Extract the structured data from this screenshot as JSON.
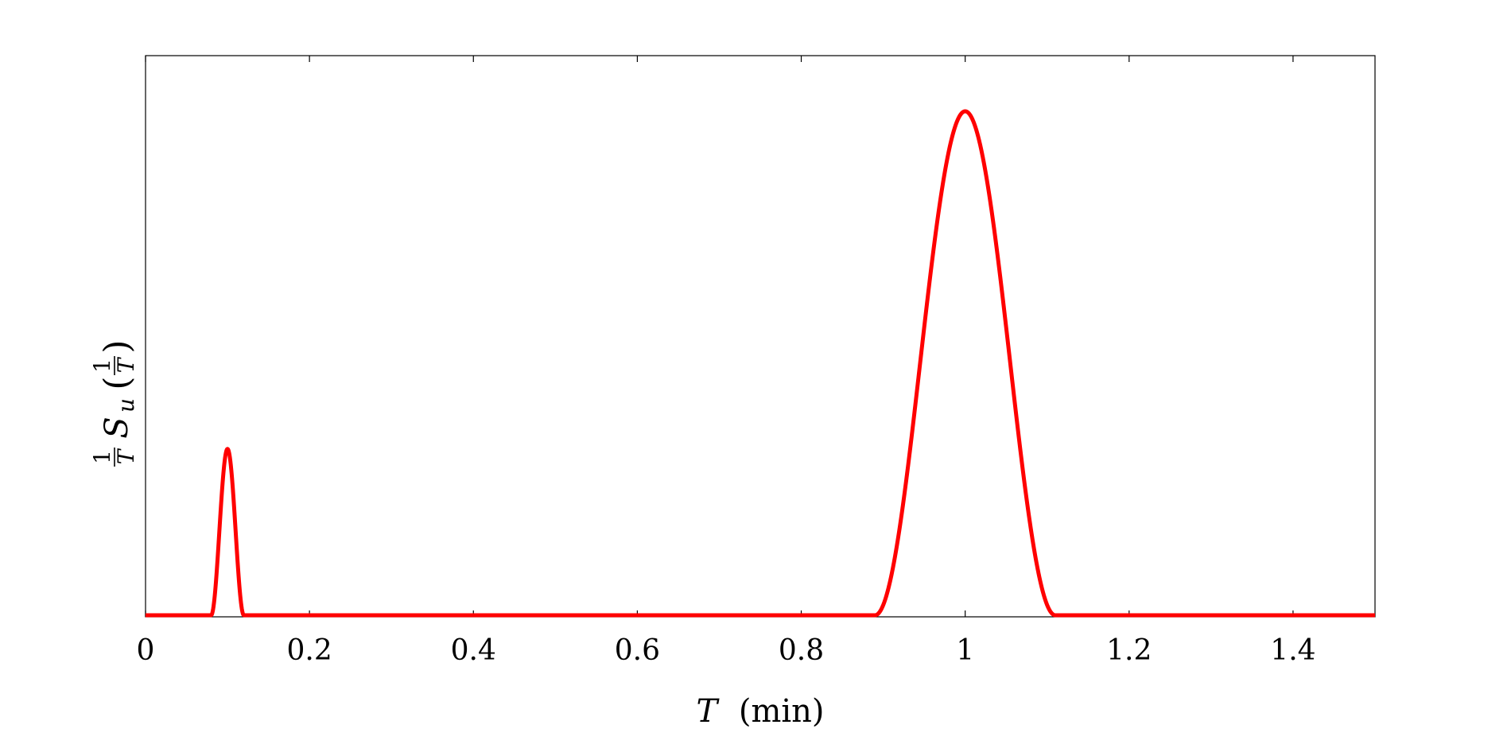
{
  "chart_data": {
    "type": "line",
    "title": "",
    "xlabel": {
      "var": "T",
      "unit": "(min)"
    },
    "ylabel": {
      "num": "1",
      "den": "T",
      "func": "S",
      "sub": "u",
      "arg_num": "1",
      "arg_den": "T"
    },
    "xlim": [
      0,
      1.5
    ],
    "ylim": [
      0,
      1.1
    ],
    "x_ticks": [
      0,
      0.2,
      0.4,
      0.6,
      0.8,
      1.0,
      1.2,
      1.4
    ],
    "x_tick_labels": [
      "0",
      "0.2",
      "0.4",
      "0.6",
      "0.8",
      "1",
      "1.2",
      "1.4"
    ],
    "y_ticks": [],
    "grid": false,
    "legend": "none",
    "series": [
      {
        "color": "#ff0000",
        "peaks": [
          {
            "center": 0.1,
            "half_width": 0.02,
            "height": 0.33
          },
          {
            "center": 1.0,
            "half_width": 0.11,
            "height": 1.0
          }
        ]
      }
    ]
  }
}
